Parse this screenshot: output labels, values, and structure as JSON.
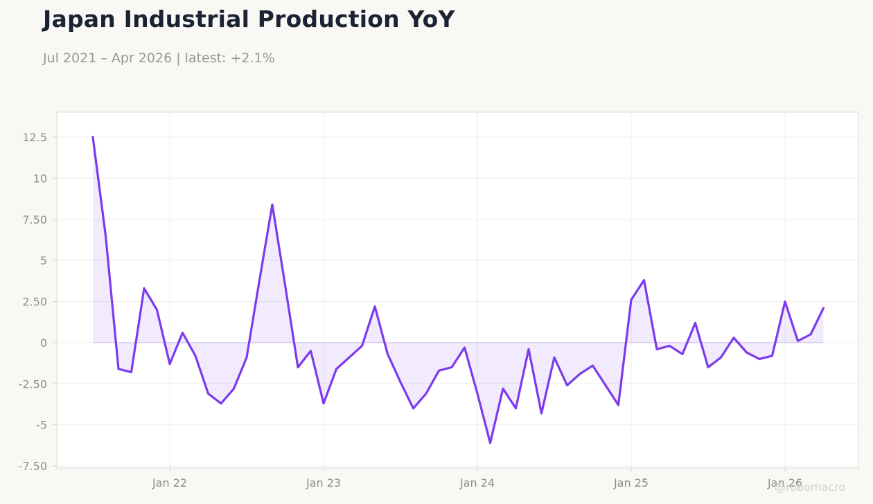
{
  "title": "Japan Industrial Production YoY",
  "subtitle": "Jul 2021 – Apr 2026 | latest: +2.1%",
  "watermark": "@robomacro",
  "colors": {
    "line": "#7c3aed",
    "fill": "#7c3aed",
    "background": "#f9f8f5",
    "plot_background": "#ffffff",
    "grid": "#eeeeee",
    "title": "#1b2233",
    "tick_text": "#8f8d86"
  },
  "chart_data": {
    "type": "area",
    "title": "Japan Industrial Production YoY",
    "subtitle": "Jul 2021 – Apr 2026 | latest: +2.1%",
    "xlabel": "",
    "ylabel": "",
    "ylim": [
      -7.5,
      14
    ],
    "xlim": [
      "2021-04",
      "2026-06"
    ],
    "grid": true,
    "legend": "none",
    "y_ticks": [
      {
        "value": 12.5,
        "label": "12.5"
      },
      {
        "value": 10,
        "label": "10"
      },
      {
        "value": 7.5,
        "label": "7.50"
      },
      {
        "value": 5,
        "label": "5"
      },
      {
        "value": 2.5,
        "label": "2.50"
      },
      {
        "value": 0,
        "label": "0"
      },
      {
        "value": -2.5,
        "label": "-2.50"
      },
      {
        "value": -5,
        "label": "-5"
      },
      {
        "value": -7.5,
        "label": "-7.50"
      }
    ],
    "x_ticks": [
      {
        "date": "2022-01",
        "label": "Jan 22"
      },
      {
        "date": "2023-01",
        "label": "Jan 23"
      },
      {
        "date": "2024-01",
        "label": "Jan 24"
      },
      {
        "date": "2025-01",
        "label": "Jan 25"
      },
      {
        "date": "2026-01",
        "label": "Jan 26"
      }
    ],
    "x": [
      "2021-07",
      "2021-08",
      "2021-09",
      "2021-10",
      "2021-11",
      "2021-12",
      "2022-01",
      "2022-02",
      "2022-03",
      "2022-04",
      "2022-05",
      "2022-06",
      "2022-07",
      "2022-08",
      "2022-09",
      "2022-10",
      "2022-11",
      "2022-12",
      "2023-01",
      "2023-02",
      "2023-03",
      "2023-04",
      "2023-05",
      "2023-06",
      "2023-07",
      "2023-08",
      "2023-09",
      "2023-10",
      "2023-11",
      "2023-12",
      "2024-01",
      "2024-02",
      "2024-03",
      "2024-04",
      "2024-05",
      "2024-06",
      "2024-07",
      "2024-08",
      "2024-09",
      "2024-10",
      "2024-11",
      "2024-12",
      "2025-01",
      "2025-02",
      "2025-03",
      "2025-04",
      "2025-05",
      "2025-06",
      "2025-07",
      "2025-08",
      "2025-09",
      "2025-10",
      "2025-11",
      "2025-12",
      "2026-01",
      "2026-02",
      "2026-03",
      "2026-04"
    ],
    "values": [
      12.5,
      6.5,
      -1.6,
      -1.8,
      3.3,
      2.0,
      -1.3,
      0.6,
      -0.8,
      -3.1,
      -3.7,
      -2.8,
      -0.9,
      3.8,
      8.4,
      3.5,
      -1.5,
      -0.5,
      -3.7,
      -1.6,
      -0.9,
      -0.2,
      2.2,
      -0.7,
      -2.4,
      -4.0,
      -3.1,
      -1.7,
      -1.5,
      -0.3,
      -3.1,
      -6.1,
      -2.8,
      -4.0,
      -0.4,
      -4.3,
      -0.9,
      -2.6,
      -1.9,
      -1.4,
      -2.6,
      -3.8,
      2.6,
      3.8,
      -0.4,
      -0.2,
      -0.7,
      1.2,
      -1.5,
      -0.9,
      0.3,
      -0.6,
      -1.0,
      -0.8,
      2.5,
      0.1,
      0.5,
      2.1
    ]
  }
}
